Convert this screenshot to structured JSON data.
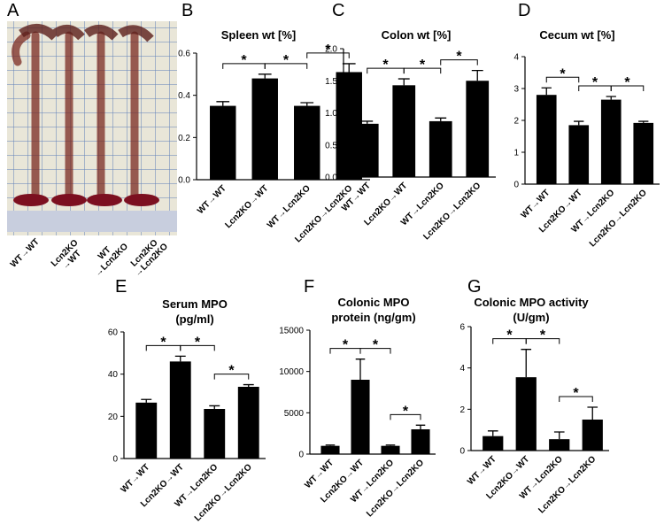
{
  "chart_data": [
    {
      "type": "photo",
      "panel_label": "A",
      "categories": [
        [
          "WT→WT"
        ],
        [
          "Lcn2KO",
          "→WT"
        ],
        [
          "WT",
          "→Lcn2KO"
        ],
        [
          "Lcn2KO",
          "→Lcn2KO"
        ]
      ]
    },
    {
      "type": "bar",
      "panel_label": "B",
      "title": [
        "Spleen wt [%]"
      ],
      "categories": [
        "WT→WT",
        "Lcn2KO→WT",
        "WT→Lcn2KO",
        "Lcn2KO→Lcn2KO"
      ],
      "values": [
        0.35,
        0.48,
        0.35,
        0.51
      ],
      "errors": [
        0.02,
        0.02,
        0.015,
        0.04
      ],
      "color": "#000000",
      "ylim": [
        0,
        0.6
      ],
      "yticks": [
        {
          "value": 0,
          "label": "0.0"
        },
        0.2,
        0.4,
        0.6
      ],
      "annotations": [
        {
          "text": "*",
          "pair": [
            0,
            1
          ]
        },
        {
          "text": "*",
          "pair": [
            1,
            2
          ]
        },
        {
          "text": "*",
          "pair": [
            2,
            3
          ]
        }
      ]
    },
    {
      "type": "bar",
      "panel_label": "C",
      "title": [
        "Colon wt [%]"
      ],
      "categories": [
        "WT→WT",
        "Lcn2KO→WT",
        "WT→Lcn2KO",
        "Lcn2KO→Lcn2KO"
      ],
      "values": [
        0.83,
        1.43,
        0.87,
        1.5
      ],
      "errors": [
        0.04,
        0.1,
        0.05,
        0.16
      ],
      "color": "#000000",
      "ylim": [
        0,
        2
      ],
      "yticks": [
        {
          "value": 0,
          "label": "0.0"
        },
        0.5,
        {
          "value": 1,
          "label": "1.0"
        },
        1.5,
        {
          "value": 2,
          "label": "2.0"
        }
      ],
      "annotations": [
        {
          "text": "*",
          "pair": [
            0,
            1
          ]
        },
        {
          "text": "*",
          "pair": [
            1,
            2
          ]
        },
        {
          "text": "*",
          "pair": [
            2,
            3
          ]
        }
      ]
    },
    {
      "type": "bar",
      "panel_label": "D",
      "title": [
        "Cecum wt [%]"
      ],
      "categories": [
        "WT→WT",
        "Lcn2KO→WT",
        "WT→Lcn2KO",
        "Lcn2KO→Lcn2KO"
      ],
      "values": [
        2.8,
        1.85,
        2.65,
        1.92
      ],
      "errors": [
        0.22,
        0.12,
        0.1,
        0.05
      ],
      "color": "#000000",
      "ylim": [
        0,
        4
      ],
      "yticks": [
        0,
        1,
        2,
        3,
        4
      ],
      "annotations": [
        {
          "text": "*",
          "pair": [
            0,
            1
          ]
        },
        {
          "text": "*",
          "pair": [
            1,
            2
          ]
        },
        {
          "text": "*",
          "pair": [
            2,
            3
          ]
        }
      ]
    },
    {
      "type": "bar",
      "panel_label": "E",
      "title": [
        "Serum MPO",
        "(pg/ml)"
      ],
      "categories": [
        "WT→WT",
        "Lcn2KO→WT",
        "WT→Lcn2KO",
        "Lcn2KO→Lcn2KO"
      ],
      "values": [
        26.5,
        46,
        23.5,
        34
      ],
      "errors": [
        1.5,
        2.5,
        1.5,
        1
      ],
      "color": "#000000",
      "ylim": [
        0,
        60
      ],
      "yticks": [
        0,
        20,
        40,
        60
      ],
      "annotations": [
        {
          "text": "*",
          "pair": [
            0,
            1
          ]
        },
        {
          "text": "*",
          "pair": [
            1,
            2
          ]
        },
        {
          "text": "*",
          "pair": [
            2,
            3
          ]
        }
      ]
    },
    {
      "type": "bar",
      "panel_label": "F",
      "title": [
        "Colonic MPO",
        "protein (ng/gm)"
      ],
      "categories": [
        "WT→WT",
        "Lcn2KO→WT",
        "WT→Lcn2KO",
        "Lcn2KO→Lcn2KO"
      ],
      "values": [
        1000,
        9000,
        1000,
        3000
      ],
      "errors": [
        100,
        2500,
        100,
        500
      ],
      "color": "#000000",
      "ylim": [
        0,
        15000
      ],
      "yticks": [
        0,
        5000,
        10000,
        15000
      ],
      "annotations": [
        {
          "text": "*",
          "pair": [
            0,
            1
          ]
        },
        {
          "text": "*",
          "pair": [
            1,
            2
          ]
        },
        {
          "text": "*",
          "pair": [
            2,
            3
          ]
        }
      ]
    },
    {
      "type": "bar",
      "panel_label": "G",
      "title": [
        "Colonic MPO activity",
        "(U/gm)"
      ],
      "categories": [
        "WT→WT",
        "Lcn2KO→WT",
        "WT→Lcn2KO",
        "Lcn2KO→Lcn2KO"
      ],
      "values": [
        0.7,
        3.55,
        0.55,
        1.5
      ],
      "errors": [
        0.25,
        1.35,
        0.35,
        0.6
      ],
      "color": "#000000",
      "ylim": [
        0,
        6
      ],
      "yticks": [
        0,
        2,
        4,
        6
      ],
      "annotations": [
        {
          "text": "*",
          "pair": [
            0,
            1
          ]
        },
        {
          "text": "*",
          "pair": [
            1,
            2
          ]
        },
        {
          "text": "*",
          "pair": [
            2,
            3
          ]
        }
      ]
    }
  ]
}
